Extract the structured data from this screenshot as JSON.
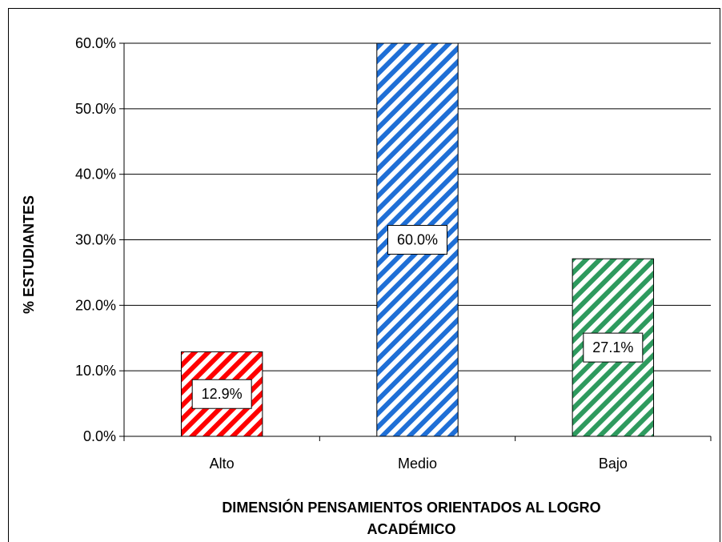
{
  "chart_data": {
    "type": "bar",
    "categories": [
      "Alto",
      "Medio",
      "Bajo"
    ],
    "values": [
      12.9,
      60.0,
      27.1
    ],
    "value_labels": [
      "12.9%",
      "60.0%",
      "27.1%"
    ],
    "colors": [
      "#ff0000",
      "#1f6fd6",
      "#2e9a5e"
    ],
    "fill_pattern": "diagonal-stripes",
    "ylabel": "% ESTUDIANTES",
    "xlabel_lines": [
      "DIMENSIÓN PENSAMIENTOS ORIENTADOS AL LOGRO",
      "ACADÉMICO"
    ],
    "ylim": [
      0,
      60
    ],
    "yticks": [
      0,
      10,
      20,
      30,
      40,
      50,
      60
    ],
    "ytick_labels": [
      "0.0%",
      "10.0%",
      "20.0%",
      "30.0%",
      "40.0%",
      "50.0%",
      "60.0%"
    ],
    "grid": true,
    "legend": "none"
  }
}
